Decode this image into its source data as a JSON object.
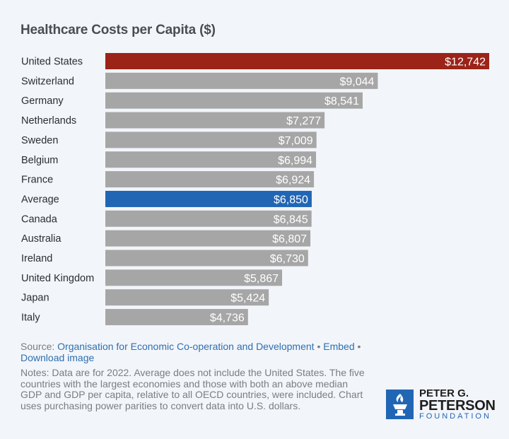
{
  "chart_data": {
    "type": "bar",
    "orientation": "horizontal",
    "title": "Healthcare Costs per Capita ($)",
    "categories": [
      "United States",
      "Switzerland",
      "Germany",
      "Netherlands",
      "Sweden",
      "Belgium",
      "France",
      "Average",
      "Canada",
      "Australia",
      "Ireland",
      "United Kingdom",
      "Japan",
      "Italy"
    ],
    "values": [
      12742,
      9044,
      8541,
      7277,
      7009,
      6994,
      6924,
      6850,
      6845,
      6807,
      6730,
      5867,
      5424,
      4736
    ],
    "value_labels": [
      "$12,742",
      "$9,044",
      "$8,541",
      "$7,277",
      "$7,009",
      "$6,994",
      "$6,924",
      "$6,850",
      "$6,845",
      "$6,807",
      "$6,730",
      "$5,867",
      "$5,424",
      "$4,736"
    ],
    "highlight": {
      "United States": "#9b2318",
      "Average": "#2166b5"
    },
    "default_color": "#a6a6a6",
    "xlim": [
      0,
      12742
    ],
    "grid": false
  },
  "footer": {
    "source_label": "Source:",
    "source_link": "Organisation for Economic Co-operation and Development",
    "bullet": "•",
    "embed": "Embed",
    "download": "Download image",
    "notes": "Notes: Data are for 2022. Average does not include the United States. The five countries with the largest economies and those with both an above median GDP and GDP per capita, relative to all OECD countries, were included. Chart uses purchasing power parities to convert data into U.S. dollars."
  },
  "logo": {
    "line1": "PETER G.",
    "line2": "PETERSON",
    "line3": "FOUNDATION"
  }
}
